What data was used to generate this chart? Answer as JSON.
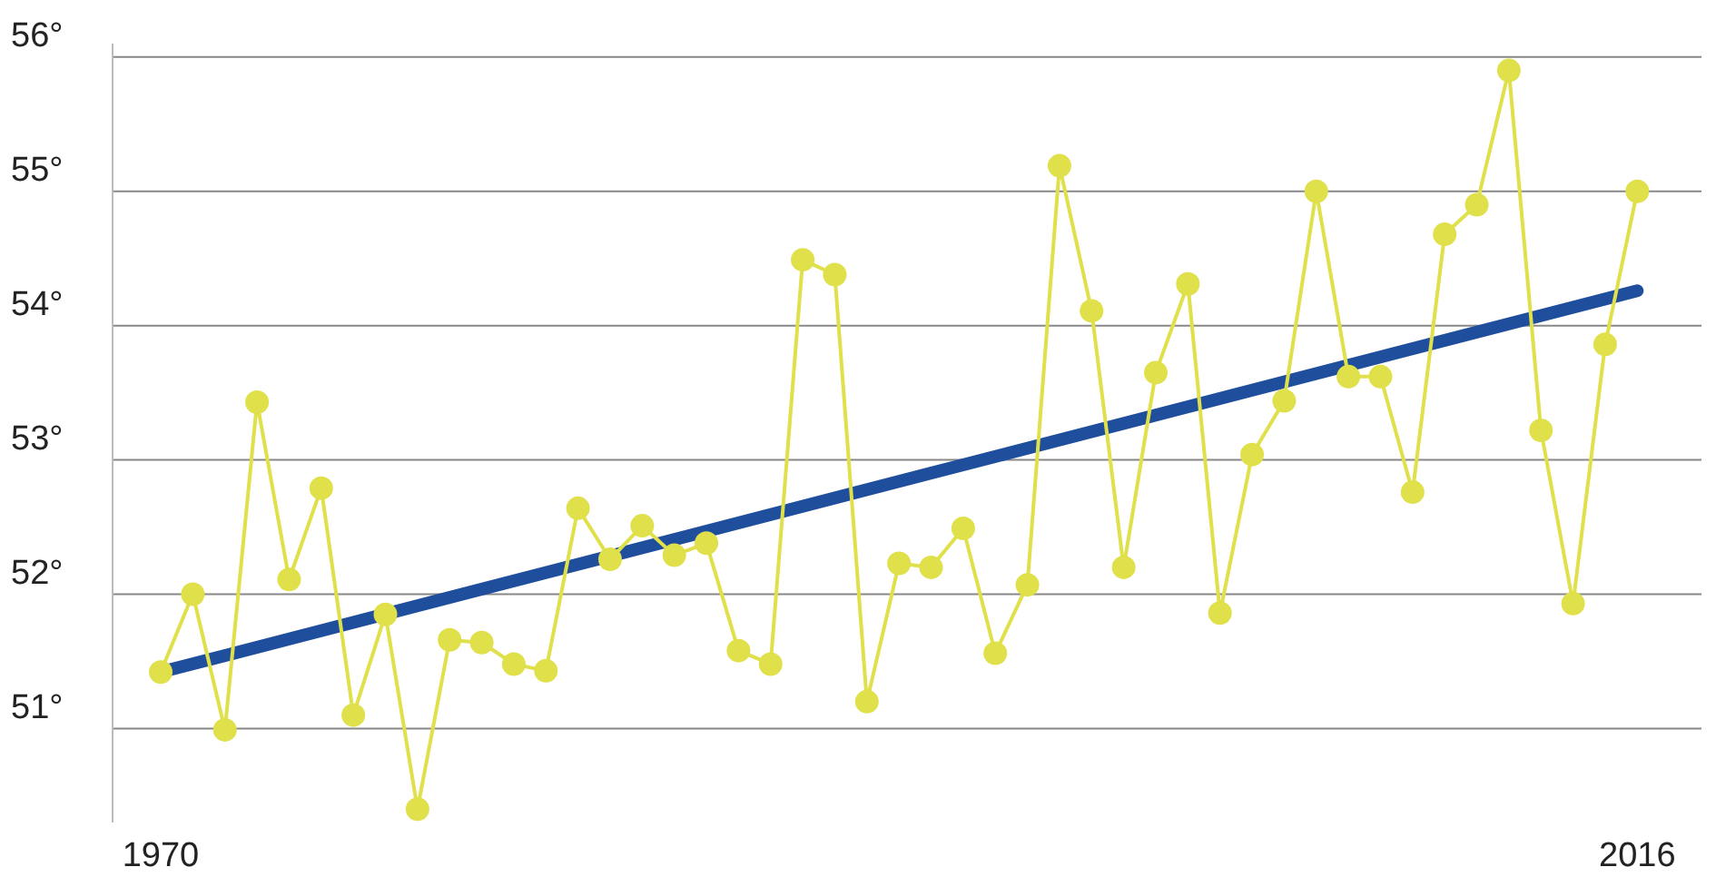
{
  "chart_data": {
    "type": "line",
    "x": [
      1970,
      1971,
      1972,
      1973,
      1974,
      1975,
      1976,
      1977,
      1978,
      1979,
      1980,
      1981,
      1982,
      1983,
      1984,
      1985,
      1986,
      1987,
      1988,
      1989,
      1990,
      1991,
      1992,
      1993,
      1994,
      1995,
      1996,
      1997,
      1998,
      1999,
      2000,
      2001,
      2002,
      2003,
      2004,
      2005,
      2006,
      2007,
      2008,
      2009,
      2010,
      2011,
      2012,
      2013,
      2014,
      2015,
      2016
    ],
    "series": [
      {
        "color": "#dfe04a",
        "marker": "circle",
        "values": [
          51.42,
          52.0,
          50.99,
          53.43,
          52.11,
          52.79,
          51.1,
          51.85,
          50.4,
          51.66,
          51.64,
          51.48,
          51.43,
          52.64,
          52.26,
          52.51,
          52.29,
          52.38,
          51.58,
          51.48,
          54.49,
          54.38,
          51.2,
          52.23,
          52.2,
          52.49,
          51.56,
          52.07,
          55.19,
          54.11,
          52.2,
          53.65,
          54.31,
          51.86,
          53.04,
          53.44,
          55.0,
          53.62,
          53.62,
          52.76,
          54.68,
          54.9,
          55.9,
          53.22,
          51.93,
          53.86,
          55.0
        ]
      },
      {
        "color": "#1f4e9c",
        "marker": "none",
        "x": [
          1970,
          2016
        ],
        "values": [
          51.42,
          54.26
        ]
      }
    ],
    "xlim": [
      1968.5,
      2018
    ],
    "xticks": [
      1970,
      2016
    ],
    "ylim": [
      50.3,
      56.1
    ],
    "yticks": [
      {
        "value": 51,
        "label": "51°"
      },
      {
        "value": 52,
        "label": "52°"
      },
      {
        "value": 53,
        "label": "53°"
      },
      {
        "value": 54,
        "label": "54°"
      },
      {
        "value": 55,
        "label": "55°"
      },
      {
        "value": 56,
        "label": "56°"
      }
    ],
    "grid": "y"
  }
}
